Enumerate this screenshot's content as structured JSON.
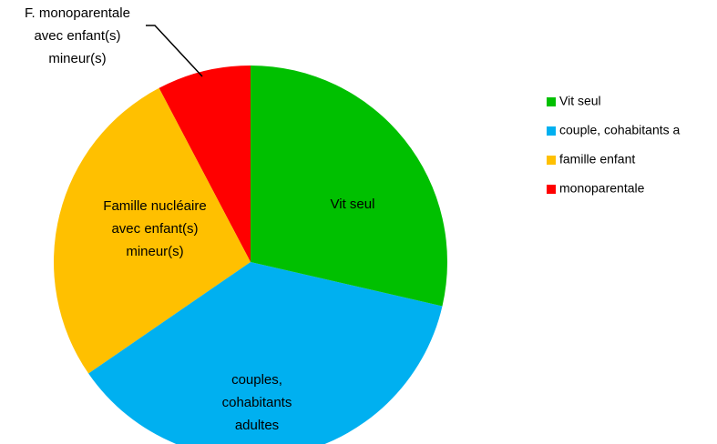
{
  "chart_data": {
    "type": "pie",
    "categories": [
      "Vit seul",
      "couple, cohabitants a",
      "famille enfant",
      "monoparentale"
    ],
    "labels": [
      [
        "Vit seul"
      ],
      [
        "couples,",
        "cohabitants",
        "adultes"
      ],
      [
        "Famille nucléaire",
        "avec enfant(s)",
        "mineur(s)"
      ],
      [
        "F. monoparentale",
        "avec enfant(s)",
        "mineur(s)"
      ]
    ],
    "values": [
      28.6,
      36.8,
      26.9,
      7.7
    ],
    "colors": [
      "#00c000",
      "#00b0f0",
      "#ffc000",
      "#ff0000"
    ],
    "legend": "right"
  }
}
